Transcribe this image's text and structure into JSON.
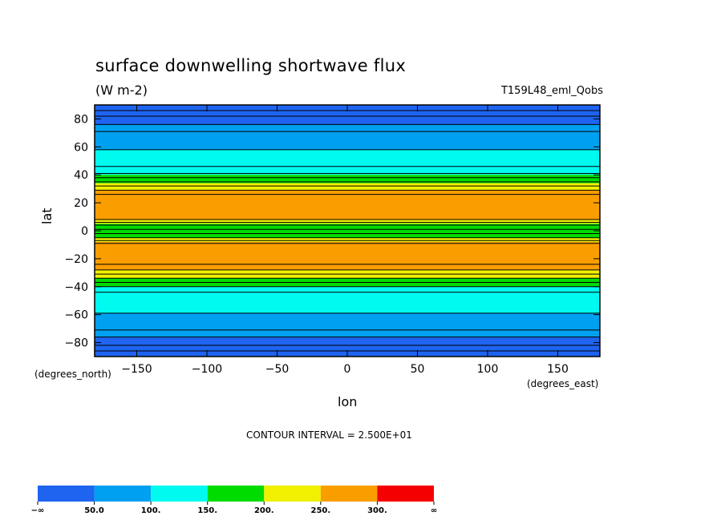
{
  "chart_data": {
    "type": "heatmap",
    "title": "surface downwelling shortwave flux",
    "units": "(W m-2)",
    "dataset": "T159L48_eml_Qobs",
    "xlabel": "lon",
    "ylabel": "lat",
    "xlabel_units": "(degrees_east)",
    "ylabel_units": "(degrees_north)",
    "xlim": [
      -180,
      180
    ],
    "ylim": [
      -90,
      90
    ],
    "x_ticks": [
      -150,
      -100,
      -50,
      0,
      50,
      100,
      150
    ],
    "x_tick_labels": [
      "−150",
      "−100",
      "−50",
      "0",
      "50",
      "100",
      "150"
    ],
    "y_ticks": [
      80,
      60,
      40,
      20,
      0,
      -20,
      -40,
      -60,
      -80
    ],
    "y_tick_labels": [
      "80",
      "60",
      "40",
      "20",
      "0",
      "−20",
      "−40",
      "−60",
      "−80"
    ],
    "contour_interval_text": "CONTOUR INTERVAL = 2.500E+01",
    "bands": [
      {
        "lat_from": 90,
        "lat_to": 76,
        "level": 0
      },
      {
        "lat_from": 76,
        "lat_to": 58,
        "level": 1
      },
      {
        "lat_from": 58,
        "lat_to": 40,
        "level": 2
      },
      {
        "lat_from": 40,
        "lat_to": 34,
        "level": 3
      },
      {
        "lat_from": 34,
        "lat_to": 29,
        "level": 4
      },
      {
        "lat_from": 29,
        "lat_to": 8,
        "level": 5
      },
      {
        "lat_from": 8,
        "lat_to": 5,
        "level": 4
      },
      {
        "lat_from": 5,
        "lat_to": -5,
        "level": 3
      },
      {
        "lat_from": -5,
        "lat_to": -8,
        "level": 4
      },
      {
        "lat_from": -8,
        "lat_to": -28,
        "level": 5
      },
      {
        "lat_from": -28,
        "lat_to": -34,
        "level": 4
      },
      {
        "lat_from": -34,
        "lat_to": -40,
        "level": 3
      },
      {
        "lat_from": -40,
        "lat_to": -59,
        "level": 2
      },
      {
        "lat_from": -59,
        "lat_to": -76,
        "level": 1
      },
      {
        "lat_from": -76,
        "lat_to": -90,
        "level": 0
      }
    ],
    "contour_lats": [
      86,
      82,
      76,
      71,
      58,
      46,
      41,
      38,
      35,
      32,
      29,
      26,
      8,
      6,
      4,
      1,
      -2,
      -5,
      -7,
      -9,
      -24,
      -28,
      -31,
      -34,
      -37,
      -40,
      -44,
      -59,
      -71,
      -76,
      -82,
      -86
    ],
    "colorbar": {
      "colors": [
        "#1e64f0",
        "#00a0f0",
        "#00faf0",
        "#00dc00",
        "#f0f000",
        "#fa9e00",
        "#f50000"
      ],
      "labels": [
        "−∞",
        "50.0",
        "100.",
        "150.",
        "200.",
        "250.",
        "300.",
        "∞"
      ]
    }
  }
}
